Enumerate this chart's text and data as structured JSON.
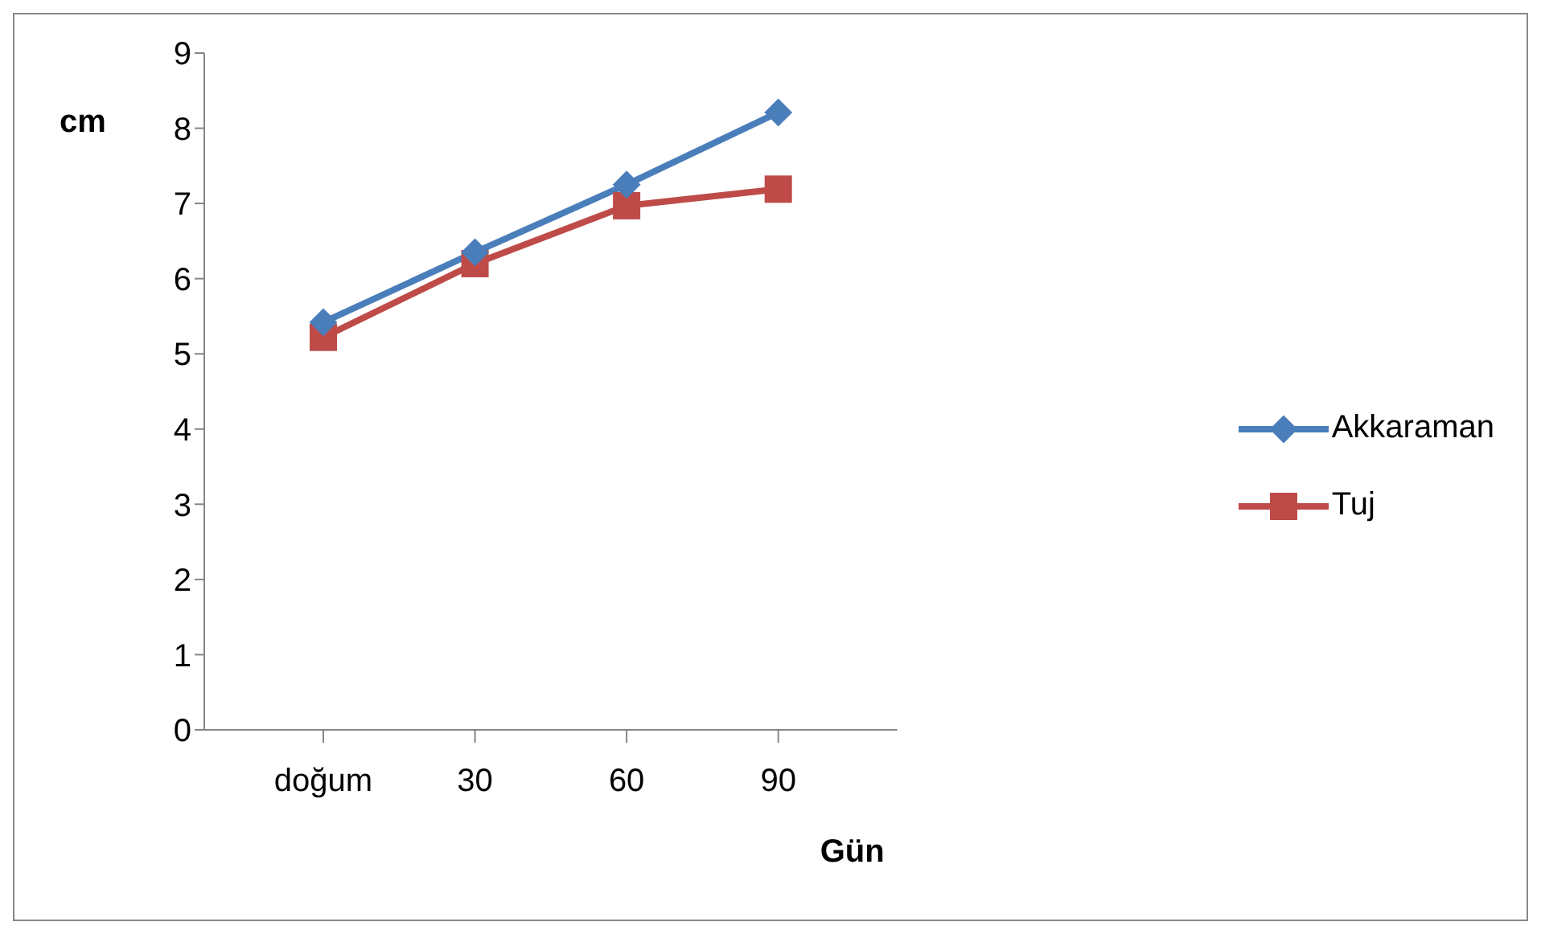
{
  "chart_data": {
    "type": "line",
    "ylabel": "cm",
    "xlabel": "Gün",
    "categories": [
      "doğum",
      "30",
      "60",
      "90"
    ],
    "ylim": [
      0,
      9
    ],
    "yticks": [
      0,
      1,
      2,
      3,
      4,
      5,
      6,
      7,
      8,
      9
    ],
    "grid": false,
    "legend": "right",
    "series": [
      {
        "name": "Akkaraman",
        "color": "#4a7ebb",
        "marker": "diamond",
        "values": [
          5.42,
          6.35,
          7.25,
          8.21
        ]
      },
      {
        "name": "Tuj",
        "color": "#be4b48",
        "marker": "square",
        "values": [
          5.22,
          6.2,
          6.97,
          7.19
        ]
      }
    ]
  }
}
